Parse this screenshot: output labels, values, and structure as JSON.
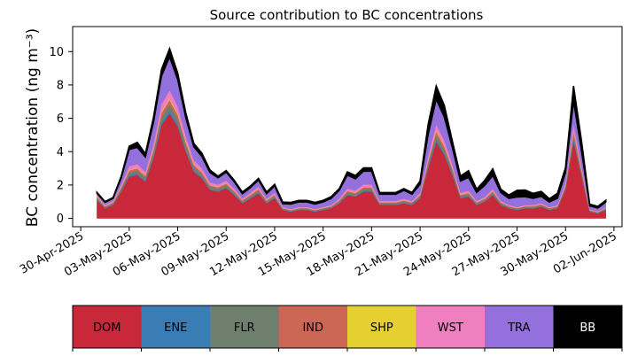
{
  "chart_data": {
    "type": "area",
    "title": "Source contribution to BC concentrations",
    "xlabel": "",
    "ylabel": "BC concentration (ng m⁻³)",
    "ylim": [
      -0.5,
      11.5
    ],
    "yticks": [
      0,
      2,
      4,
      6,
      8,
      10
    ],
    "xlim": [
      "2025-04-29T12:00",
      "2025-06-02T12:00"
    ],
    "xticks": [
      "30-Apr-2025",
      "03-May-2025",
      "06-May-2025",
      "09-May-2025",
      "12-May-2025",
      "15-May-2025",
      "18-May-2025",
      "21-May-2025",
      "24-May-2025",
      "27-May-2025",
      "30-May-2025",
      "02-Jun-2025"
    ],
    "stacked": true,
    "grid": false,
    "legend": "colorbar below the chart",
    "x": [
      "2025-05-01T00:00",
      "2025-05-01T12:00",
      "2025-05-02T00:00",
      "2025-05-02T12:00",
      "2025-05-03T00:00",
      "2025-05-03T12:00",
      "2025-05-04T00:00",
      "2025-05-04T12:00",
      "2025-05-05T00:00",
      "2025-05-05T12:00",
      "2025-05-06T00:00",
      "2025-05-06T12:00",
      "2025-05-07T00:00",
      "2025-05-07T12:00",
      "2025-05-08T00:00",
      "2025-05-08T12:00",
      "2025-05-09T00:00",
      "2025-05-09T12:00",
      "2025-05-10T00:00",
      "2025-05-10T12:00",
      "2025-05-11T00:00",
      "2025-05-11T12:00",
      "2025-05-12T00:00",
      "2025-05-12T12:00",
      "2025-05-13T00:00",
      "2025-05-13T12:00",
      "2025-05-14T00:00",
      "2025-05-14T12:00",
      "2025-05-15T00:00",
      "2025-05-15T12:00",
      "2025-05-16T00:00",
      "2025-05-16T12:00",
      "2025-05-17T00:00",
      "2025-05-17T12:00",
      "2025-05-18T00:00",
      "2025-05-18T12:00",
      "2025-05-19T00:00",
      "2025-05-19T12:00",
      "2025-05-20T00:00",
      "2025-05-20T12:00",
      "2025-05-21T00:00",
      "2025-05-21T12:00",
      "2025-05-22T00:00",
      "2025-05-22T12:00",
      "2025-05-23T00:00",
      "2025-05-23T12:00",
      "2025-05-24T00:00",
      "2025-05-24T12:00",
      "2025-05-25T00:00",
      "2025-05-25T12:00",
      "2025-05-26T00:00",
      "2025-05-26T12:00",
      "2025-05-27T00:00",
      "2025-05-27T12:00",
      "2025-05-28T00:00",
      "2025-05-28T12:00",
      "2025-05-29T00:00",
      "2025-05-29T12:00",
      "2025-05-30T00:00",
      "2025-05-30T12:00",
      "2025-05-31T00:00",
      "2025-05-31T12:00",
      "2025-06-01T00:00",
      "2025-06-01T12:00"
    ],
    "series": [
      {
        "name": "DOM",
        "color": "#c8283a",
        "values": [
          1.1,
          0.6,
          0.8,
          1.6,
          2.5,
          2.6,
          2.2,
          3.6,
          5.6,
          6.3,
          5.5,
          4.0,
          2.8,
          2.4,
          1.7,
          1.6,
          1.8,
          1.4,
          0.9,
          1.2,
          1.5,
          0.9,
          1.2,
          0.5,
          0.4,
          0.5,
          0.5,
          0.4,
          0.5,
          0.6,
          0.9,
          1.4,
          1.3,
          1.6,
          1.6,
          0.8,
          0.8,
          0.8,
          0.9,
          0.8,
          1.2,
          3.0,
          4.6,
          3.8,
          2.6,
          1.2,
          1.3,
          0.8,
          1.0,
          1.4,
          0.8,
          0.6,
          0.5,
          0.6,
          0.6,
          0.7,
          0.5,
          0.6,
          1.7,
          4.6,
          2.5,
          0.4,
          0.3,
          0.5
        ]
      },
      {
        "name": "ENE",
        "color": "#3a7db5",
        "values": [
          0.03,
          0.02,
          0.03,
          0.05,
          0.08,
          0.08,
          0.07,
          0.1,
          0.15,
          0.17,
          0.15,
          0.11,
          0.08,
          0.07,
          0.05,
          0.05,
          0.05,
          0.04,
          0.03,
          0.04,
          0.05,
          0.03,
          0.04,
          0.02,
          0.02,
          0.02,
          0.02,
          0.02,
          0.02,
          0.02,
          0.03,
          0.04,
          0.04,
          0.05,
          0.05,
          0.03,
          0.03,
          0.03,
          0.03,
          0.03,
          0.04,
          0.09,
          0.13,
          0.11,
          0.08,
          0.04,
          0.04,
          0.03,
          0.03,
          0.04,
          0.03,
          0.02,
          0.02,
          0.02,
          0.02,
          0.02,
          0.02,
          0.02,
          0.05,
          0.13,
          0.07,
          0.02,
          0.01,
          0.02
        ]
      },
      {
        "name": "FLR",
        "color": "#6e7f6e",
        "values": [
          0.1,
          0.07,
          0.08,
          0.12,
          0.18,
          0.19,
          0.17,
          0.24,
          0.33,
          0.36,
          0.32,
          0.26,
          0.2,
          0.18,
          0.14,
          0.13,
          0.14,
          0.12,
          0.09,
          0.1,
          0.12,
          0.09,
          0.1,
          0.06,
          0.05,
          0.06,
          0.06,
          0.05,
          0.06,
          0.07,
          0.09,
          0.12,
          0.11,
          0.13,
          0.13,
          0.08,
          0.08,
          0.08,
          0.09,
          0.08,
          0.1,
          0.2,
          0.28,
          0.24,
          0.18,
          0.1,
          0.11,
          0.08,
          0.09,
          0.11,
          0.08,
          0.07,
          0.06,
          0.07,
          0.07,
          0.07,
          0.06,
          0.07,
          0.13,
          0.28,
          0.17,
          0.05,
          0.04,
          0.06
        ]
      },
      {
        "name": "IND",
        "color": "#cc6655",
        "values": [
          0.06,
          0.04,
          0.05,
          0.08,
          0.12,
          0.13,
          0.11,
          0.17,
          0.25,
          0.28,
          0.25,
          0.19,
          0.14,
          0.12,
          0.09,
          0.09,
          0.1,
          0.08,
          0.06,
          0.07,
          0.08,
          0.06,
          0.07,
          0.04,
          0.03,
          0.04,
          0.04,
          0.03,
          0.04,
          0.04,
          0.06,
          0.08,
          0.08,
          0.09,
          0.09,
          0.05,
          0.05,
          0.05,
          0.06,
          0.05,
          0.07,
          0.15,
          0.21,
          0.18,
          0.13,
          0.07,
          0.07,
          0.05,
          0.06,
          0.08,
          0.05,
          0.04,
          0.04,
          0.04,
          0.04,
          0.05,
          0.04,
          0.04,
          0.09,
          0.21,
          0.12,
          0.03,
          0.03,
          0.04
        ]
      },
      {
        "name": "SHP",
        "color": "#e6cf30",
        "values": [
          0.02,
          0.01,
          0.01,
          0.02,
          0.03,
          0.03,
          0.03,
          0.04,
          0.06,
          0.07,
          0.06,
          0.05,
          0.03,
          0.03,
          0.02,
          0.02,
          0.02,
          0.02,
          0.01,
          0.02,
          0.02,
          0.01,
          0.02,
          0.01,
          0.01,
          0.01,
          0.01,
          0.01,
          0.01,
          0.01,
          0.01,
          0.02,
          0.02,
          0.02,
          0.02,
          0.01,
          0.01,
          0.01,
          0.01,
          0.01,
          0.02,
          0.04,
          0.05,
          0.04,
          0.03,
          0.02,
          0.02,
          0.01,
          0.01,
          0.02,
          0.01,
          0.01,
          0.01,
          0.01,
          0.01,
          0.01,
          0.01,
          0.01,
          0.02,
          0.05,
          0.03,
          0.01,
          0.01,
          0.01
        ]
      },
      {
        "name": "WST",
        "color": "#f07fbf",
        "values": [
          0.1,
          0.07,
          0.08,
          0.14,
          0.22,
          0.23,
          0.2,
          0.3,
          0.45,
          0.5,
          0.44,
          0.33,
          0.24,
          0.21,
          0.15,
          0.14,
          0.16,
          0.13,
          0.09,
          0.11,
          0.13,
          0.09,
          0.11,
          0.05,
          0.05,
          0.05,
          0.05,
          0.05,
          0.05,
          0.06,
          0.09,
          0.13,
          0.12,
          0.14,
          0.14,
          0.08,
          0.08,
          0.08,
          0.09,
          0.08,
          0.11,
          0.25,
          0.37,
          0.31,
          0.22,
          0.11,
          0.12,
          0.08,
          0.09,
          0.12,
          0.08,
          0.06,
          0.05,
          0.06,
          0.06,
          0.07,
          0.05,
          0.06,
          0.15,
          0.37,
          0.21,
          0.04,
          0.03,
          0.05
        ]
      },
      {
        "name": "TRA",
        "color": "#9370db",
        "values": [
          0.1,
          0.15,
          0.15,
          0.4,
          1.0,
          1.0,
          0.9,
          1.3,
          1.7,
          2.0,
          1.6,
          1.1,
          0.8,
          0.7,
          0.6,
          0.4,
          0.5,
          0.4,
          0.3,
          0.3,
          0.4,
          0.3,
          0.4,
          0.2,
          0.3,
          0.3,
          0.3,
          0.3,
          0.3,
          0.4,
          0.5,
          0.8,
          0.7,
          0.8,
          0.8,
          0.4,
          0.4,
          0.4,
          0.5,
          0.4,
          0.5,
          1.3,
          1.5,
          1.4,
          1.0,
          0.7,
          0.8,
          0.5,
          0.7,
          0.8,
          0.5,
          0.4,
          0.6,
          0.5,
          0.4,
          0.4,
          0.3,
          0.4,
          0.6,
          1.4,
          0.9,
          0.2,
          0.2,
          0.3
        ]
      },
      {
        "name": "BB",
        "color": "#000000",
        "values": [
          0.05,
          0.05,
          0.05,
          0.1,
          0.2,
          0.3,
          0.2,
          0.3,
          0.4,
          0.5,
          0.4,
          0.3,
          0.2,
          0.2,
          0.15,
          0.1,
          0.1,
          0.1,
          0.1,
          0.1,
          0.1,
          0.1,
          0.1,
          0.1,
          0.1,
          0.1,
          0.1,
          0.1,
          0.1,
          0.1,
          0.1,
          0.2,
          0.2,
          0.2,
          0.2,
          0.1,
          0.1,
          0.1,
          0.1,
          0.1,
          0.2,
          0.6,
          0.8,
          0.7,
          0.4,
          0.3,
          0.4,
          0.2,
          0.3,
          0.4,
          0.2,
          0.2,
          0.4,
          0.4,
          0.3,
          0.3,
          0.2,
          0.3,
          0.3,
          0.9,
          0.6,
          0.1,
          0.1,
          0.1
        ]
      }
    ],
    "legend_entries": [
      "DOM",
      "ENE",
      "FLR",
      "IND",
      "SHP",
      "WST",
      "TRA",
      "BB"
    ]
  }
}
